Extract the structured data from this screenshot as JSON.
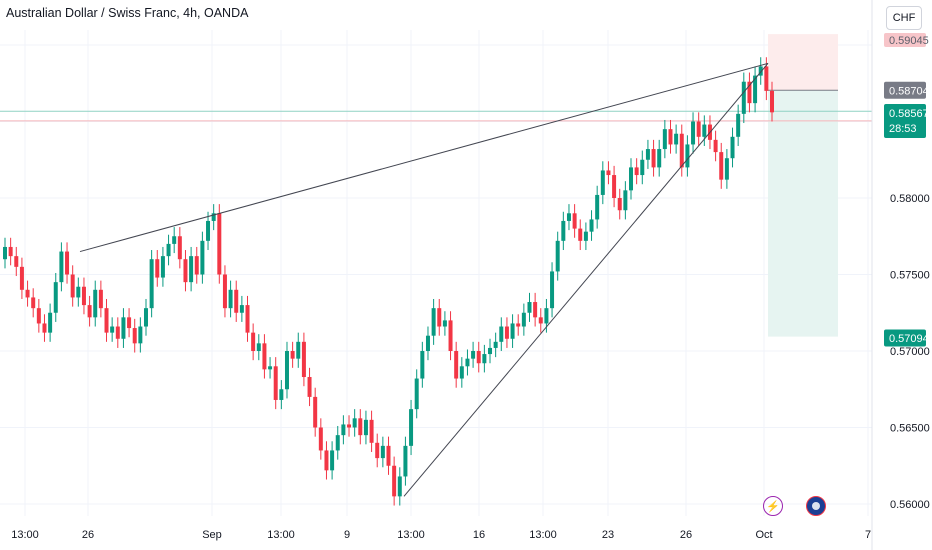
{
  "header": {
    "title": "Australian Dollar / Swiss Franc, 4h, OANDA",
    "currency_button": "CHF"
  },
  "events": {
    "bolt_icon": "lightning-icon",
    "flag_icon": "australia-flag-icon"
  },
  "colors": {
    "up": "#089981",
    "down": "#f23645",
    "trendline": "#434651",
    "profit_zone": "#e6f4f1",
    "stop_zone": "#fdecec",
    "entry_label": "#787b86",
    "stop_label": "#f7c5c9",
    "profit_label": "#089981"
  },
  "chart_data": {
    "type": "candlestick",
    "title": "Australian Dollar / Swiss Franc, 4h, OANDA",
    "ylim": [
      0.56,
      0.5915
    ],
    "x_tick_labels": [
      "13:00",
      "26",
      "Sep",
      "13:00",
      "9",
      "13:00",
      "16",
      "13:00",
      "23",
      "26",
      "Oct",
      "7"
    ],
    "y_tick_labels": [
      "0.56000",
      "0.56500",
      "0.57000",
      "0.57500",
      "0.58000"
    ],
    "price_labels": {
      "stop_loss": "0.59045",
      "entry": "0.58704",
      "last_price": "0.58567",
      "countdown": "28:53",
      "take_profit": "0.57094"
    },
    "trendlines": [
      {
        "from": {
          "date": "Aug 26",
          "price": 0.5765
        },
        "to": {
          "date": "Oct 1",
          "price": 0.5888
        }
      },
      {
        "from": {
          "date": "Sep 12",
          "price": 0.5605
        },
        "to": {
          "date": "Oct 1",
          "price": 0.5888
        }
      }
    ],
    "candles_close": [
      0.5768,
      0.5762,
      0.5755,
      0.574,
      0.5735,
      0.5728,
      0.5718,
      0.5712,
      0.5725,
      0.5745,
      0.5765,
      0.575,
      0.5735,
      0.5742,
      0.573,
      0.5722,
      0.574,
      0.5728,
      0.5712,
      0.5716,
      0.5708,
      0.5722,
      0.5715,
      0.5705,
      0.5716,
      0.5728,
      0.576,
      0.5748,
      0.5762,
      0.577,
      0.5775,
      0.576,
      0.5745,
      0.5762,
      0.575,
      0.5772,
      0.5785,
      0.579,
      0.575,
      0.5728,
      0.574,
      0.5725,
      0.573,
      0.5712,
      0.57,
      0.5705,
      0.5688,
      0.569,
      0.5668,
      0.5675,
      0.57,
      0.5695,
      0.5706,
      0.5683,
      0.567,
      0.565,
      0.5635,
      0.5622,
      0.5635,
      0.5645,
      0.5652,
      0.565,
      0.5656,
      0.5645,
      0.5655,
      0.564,
      0.563,
      0.5638,
      0.5625,
      0.5605,
      0.5618,
      0.5638,
      0.5662,
      0.5682,
      0.57,
      0.571,
      0.5728,
      0.5716,
      0.572,
      0.57,
      0.5682,
      0.569,
      0.5695,
      0.57,
      0.5692,
      0.5698,
      0.5702,
      0.5706,
      0.5716,
      0.5708,
      0.5718,
      0.5716,
      0.5725,
      0.5732,
      0.5722,
      0.5718,
      0.5728,
      0.5752,
      0.5772,
      0.5785,
      0.579,
      0.578,
      0.5772,
      0.5778,
      0.5786,
      0.5802,
      0.5818,
      0.5815,
      0.58,
      0.5792,
      0.5805,
      0.582,
      0.5815,
      0.5825,
      0.5832,
      0.582,
      0.5832,
      0.5845,
      0.5835,
      0.5842,
      0.582,
      0.5835,
      0.585,
      0.584,
      0.5848,
      0.5838,
      0.583,
      0.5812,
      0.5826,
      0.584,
      0.5855,
      0.5876,
      0.5862,
      0.588,
      0.5886,
      0.587,
      0.5856
    ],
    "candles_open_offset": 0.0012,
    "zones": {
      "entry_price": 0.58704,
      "stop_price": 0.59045,
      "target_price": 0.57094,
      "last_price": 0.58567,
      "grey_line": 0.5853
    }
  }
}
